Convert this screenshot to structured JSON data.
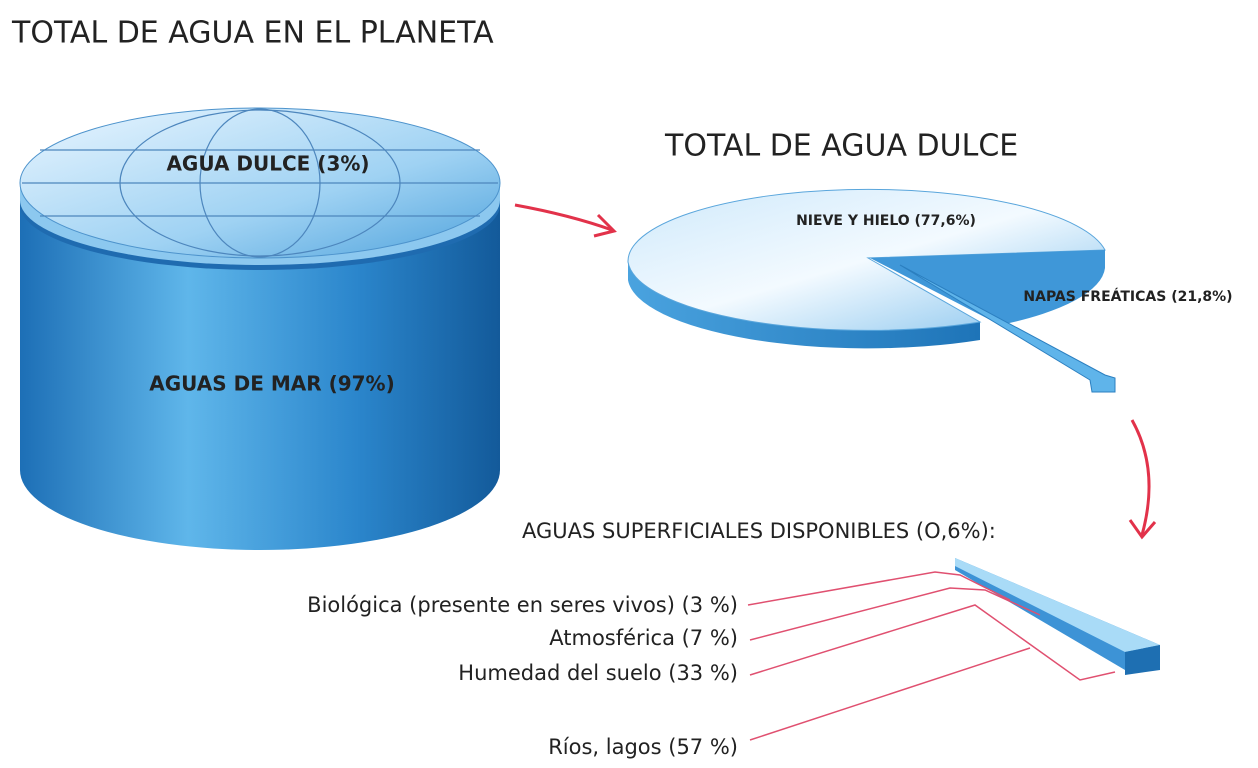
{
  "title": "TOTAL DE AGUA EN EL PLANETA",
  "planet": {
    "top_label": "AGUA DULCE (3%)",
    "body_label": "AGUAS DE MAR  (97%)"
  },
  "fresh_water": {
    "title": "TOTAL DE AGUA DULCE",
    "slices": [
      "NIEVE Y HIELO (77,6%)",
      "NAPAS FREÁTICAS (21,8%)"
    ]
  },
  "surface_water": {
    "title": "AGUAS SUPERFICIALES DISPONIBLES (O,6%):",
    "items": [
      "Biológica (presente en seres vivos) (3 %)",
      "Atmosférica (7 %)",
      "Humedad del suelo (33 %)",
      "Ríos, lagos (57 %)"
    ]
  }
}
